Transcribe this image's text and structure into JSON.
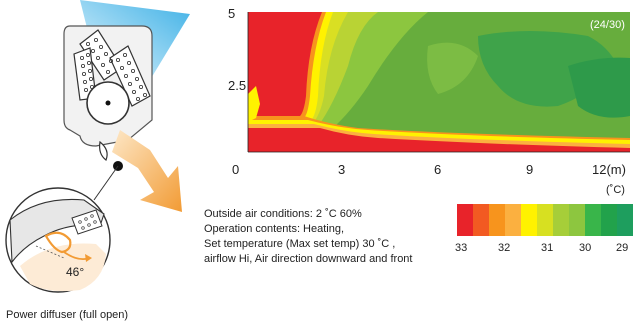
{
  "diagram": {
    "caption": "Power diffuser (full open)",
    "angle_label": "46°"
  },
  "heatmap": {
    "frame_label": "(24/30)",
    "x_ticks": [
      "0",
      "3",
      "6",
      "9",
      "12(m)"
    ],
    "y_ticks": [
      "5",
      "2.5"
    ]
  },
  "conditions": {
    "line1": "Outside air conditions: 2 ˚C 60%",
    "line2": "Operation contents: Heating,",
    "line3": "Set temperature (Max set temp) 30 ˚C ,",
    "line4": "airflow Hi, Air direction downward and front"
  },
  "scale": {
    "unit": "(˚C)",
    "labels": [
      "33",
      "32",
      "31",
      "30",
      "29"
    ],
    "colors": [
      "#e8232a",
      "#f25a22",
      "#f7941d",
      "#fbb040",
      "#fff200",
      "#d7e021",
      "#a6ce39",
      "#8dc63f",
      "#39b54a",
      "#22a24b",
      "#1e9e5e"
    ]
  },
  "chart_data": {
    "type": "heatmap",
    "title": "",
    "xlabel": "",
    "ylabel": "",
    "x_ticks": [
      0,
      3,
      6,
      9,
      12
    ],
    "x_unit": "m",
    "y_ticks": [
      2.5,
      5
    ],
    "xlim": [
      0,
      12
    ],
    "ylim": [
      0,
      5
    ],
    "frame": "24/30",
    "color_scale": {
      "min": 29,
      "max": 33,
      "unit": "˚C",
      "labels": [
        33,
        32,
        31,
        30,
        29
      ]
    }
  }
}
